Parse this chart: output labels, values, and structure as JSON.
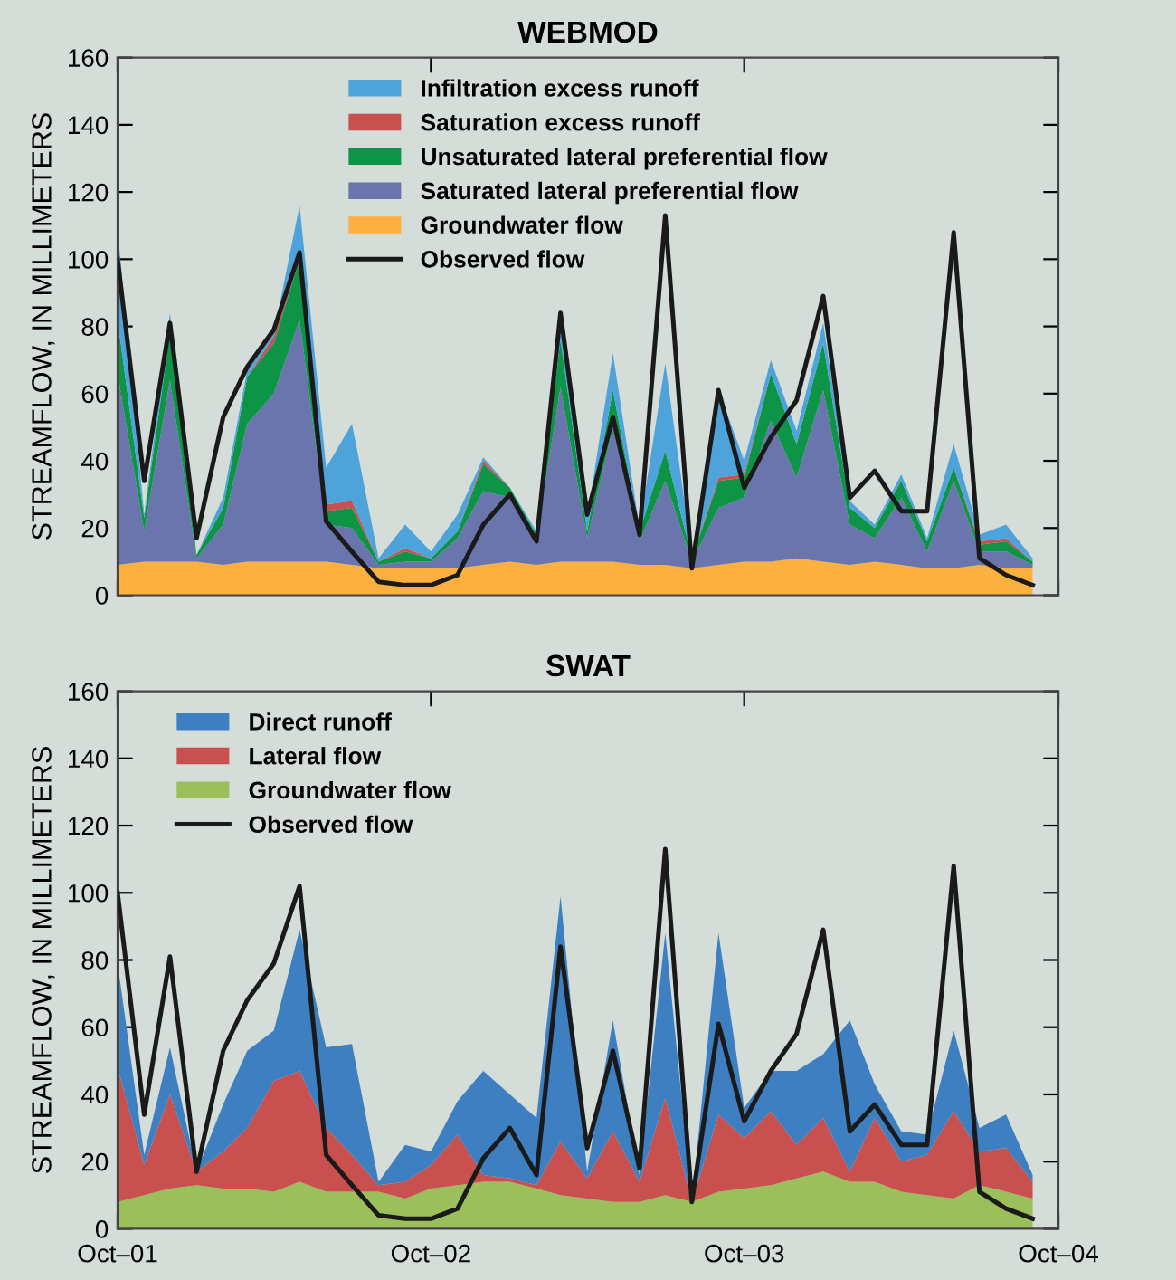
{
  "chart_data": [
    {
      "type": "area",
      "title": "WEBMOD",
      "ylabel": "STREAMFLOW, IN MILLIMETERS",
      "stacked": true,
      "legend": "top",
      "grid": false,
      "tick_labels": "y",
      "x": [
        "2001-10",
        "2001-11",
        "2001-12",
        "2002-01",
        "2002-02",
        "2002-03",
        "2002-04",
        "2002-05",
        "2002-06",
        "2002-07",
        "2002-08",
        "2002-09",
        "2002-10",
        "2002-11",
        "2002-12",
        "2003-01",
        "2003-02",
        "2003-03",
        "2003-04",
        "2003-05",
        "2003-06",
        "2003-07",
        "2003-08",
        "2003-09",
        "2003-10",
        "2003-11",
        "2003-12",
        "2004-01",
        "2004-02",
        "2004-03",
        "2004-04",
        "2004-05",
        "2004-06",
        "2004-07",
        "2004-08",
        "2004-09"
      ],
      "xlim": [
        "2001-10",
        "2004-10"
      ],
      "xticks": [
        {
          "value": "2001-10",
          "label": null
        },
        {
          "value": "2002-10",
          "label": null
        },
        {
          "value": "2003-10",
          "label": null
        },
        {
          "value": "2004-10",
          "label": null
        }
      ],
      "ylim": [
        0,
        160
      ],
      "yticks": [
        0,
        20,
        40,
        60,
        80,
        100,
        120,
        140,
        160
      ],
      "series": [
        {
          "name": "Groundwater flow",
          "color": "#fbb040",
          "values": [
            9,
            10,
            10,
            10,
            9,
            10,
            10,
            10,
            10,
            9,
            8,
            8,
            8,
            8,
            9,
            10,
            9,
            10,
            10,
            10,
            9,
            9,
            8,
            9,
            10,
            10,
            11,
            10,
            9,
            10,
            9,
            8,
            8,
            9,
            8,
            8
          ]
        },
        {
          "name": "Saturated lateral preferential flow",
          "color": "#6a74ad",
          "values": [
            57,
            9,
            54,
            1,
            12,
            41,
            50,
            72,
            11,
            11,
            1,
            2,
            2,
            9,
            22,
            19,
            8,
            52,
            7,
            40,
            7,
            25,
            2,
            17,
            19,
            42,
            24,
            51,
            12,
            7,
            20,
            5,
            26,
            4,
            5,
            1
          ]
        },
        {
          "name": "Unsaturated lateral preferential flow",
          "color": "#0e9447",
          "values": [
            16,
            4,
            14,
            1,
            5,
            14,
            15,
            18,
            4,
            6,
            1,
            3,
            1,
            2,
            8,
            3,
            1,
            14,
            2,
            11,
            3,
            9,
            1,
            8,
            6,
            14,
            10,
            14,
            5,
            3,
            5,
            3,
            4,
            2,
            3,
            1
          ]
        },
        {
          "name": "Saturation excess runoff",
          "color": "#c8504f",
          "values": [
            0,
            0,
            0,
            0,
            0,
            0,
            2,
            0,
            2,
            2,
            0,
            1,
            0,
            0,
            1,
            0,
            0,
            0,
            0,
            0,
            0,
            0,
            0,
            1,
            1,
            0,
            0,
            0,
            0,
            0,
            0,
            0,
            0,
            1,
            1,
            0
          ]
        },
        {
          "name": "Infiltration excess runoff",
          "color": "#4fa3db",
          "values": [
            27,
            1,
            6,
            0,
            3,
            2,
            1,
            16,
            11,
            23,
            1,
            7,
            2,
            5,
            1,
            0,
            1,
            9,
            4,
            11,
            1,
            26,
            1,
            26,
            4,
            4,
            4,
            6,
            2,
            1,
            2,
            1,
            7,
            2,
            4,
            1
          ]
        },
        {
          "name": "Observed flow",
          "type": "line",
          "color": "#1a1a1a",
          "values": [
            100,
            34,
            81,
            17,
            53,
            68,
            79,
            102,
            22,
            13,
            4,
            3,
            3,
            6,
            21,
            30,
            16,
            84,
            24,
            53,
            18,
            113,
            8,
            61,
            32,
            47,
            58,
            89,
            29,
            37,
            25,
            25,
            108,
            11,
            6,
            3
          ]
        }
      ]
    },
    {
      "type": "area",
      "title": "SWAT",
      "ylabel": "STREAMFLOW, IN MILLIMETERS",
      "stacked": true,
      "legend": "top left",
      "grid": false,
      "x": [
        "2001-10",
        "2001-11",
        "2001-12",
        "2002-01",
        "2002-02",
        "2002-03",
        "2002-04",
        "2002-05",
        "2002-06",
        "2002-07",
        "2002-08",
        "2002-09",
        "2002-10",
        "2002-11",
        "2002-12",
        "2003-01",
        "2003-02",
        "2003-03",
        "2003-04",
        "2003-05",
        "2003-06",
        "2003-07",
        "2003-08",
        "2003-09",
        "2003-10",
        "2003-11",
        "2003-12",
        "2004-01",
        "2004-02",
        "2004-03",
        "2004-04",
        "2004-05",
        "2004-06",
        "2004-07",
        "2004-08",
        "2004-09"
      ],
      "xlim": [
        "2001-10",
        "2004-10"
      ],
      "xticks": [
        {
          "value": "2001-10",
          "label": "Oct–01"
        },
        {
          "value": "2002-10",
          "label": "Oct–02"
        },
        {
          "value": "2003-10",
          "label": "Oct–03"
        },
        {
          "value": "2004-10",
          "label": "Oct–04"
        }
      ],
      "ylim": [
        0,
        160
      ],
      "yticks": [
        0,
        20,
        40,
        60,
        80,
        100,
        120,
        140,
        160
      ],
      "series": [
        {
          "name": "Groundwater flow",
          "color": "#9bbf5a",
          "values": [
            8,
            10,
            12,
            13,
            12,
            12,
            11,
            14,
            11,
            11,
            11,
            9,
            12,
            13,
            14,
            14,
            12,
            10,
            9,
            8,
            8,
            10,
            8,
            11,
            12,
            13,
            15,
            17,
            14,
            14,
            11,
            10,
            9,
            13,
            11,
            9
          ]
        },
        {
          "name": "Lateral flow",
          "color": "#c85150",
          "values": [
            40,
            9,
            28,
            4,
            11,
            18,
            33,
            33,
            19,
            11,
            2,
            5,
            7,
            15,
            2,
            1,
            1,
            16,
            6,
            21,
            6,
            29,
            0,
            23,
            15,
            22,
            10,
            16,
            3,
            19,
            9,
            12,
            26,
            10,
            13,
            5
          ]
        },
        {
          "name": "Direct runoff",
          "color": "#3d7fc1",
          "values": [
            31,
            3,
            14,
            0,
            14,
            23,
            15,
            42,
            24,
            33,
            1,
            11,
            4,
            10,
            31,
            25,
            20,
            73,
            2,
            33,
            2,
            49,
            0,
            54,
            9,
            12,
            22,
            19,
            45,
            10,
            9,
            6,
            24,
            7,
            10,
            2
          ]
        },
        {
          "name": "Observed flow",
          "type": "line",
          "color": "#1a1a1a",
          "values": [
            100,
            34,
            81,
            17,
            53,
            68,
            79,
            102,
            22,
            13,
            4,
            3,
            3,
            6,
            21,
            30,
            16,
            84,
            24,
            53,
            18,
            113,
            8,
            61,
            32,
            47,
            58,
            89,
            29,
            37,
            25,
            25,
            108,
            11,
            6,
            3
          ]
        }
      ]
    }
  ]
}
